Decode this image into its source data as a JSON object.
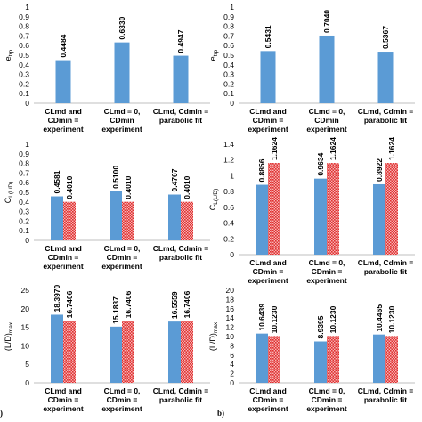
{
  "figure": {
    "panel_labels": [
      "b)"
    ],
    "left_edge_mark": ")"
  },
  "colors": {
    "series_blue": "#5b9bd5",
    "series_red": "#e63c3c",
    "axis": "#bfbfbf",
    "text": "#000000"
  },
  "chart_data": [
    {
      "type": "bar",
      "ylabel": "e_trp",
      "ylim": [
        0,
        1
      ],
      "yticks": [
        "0",
        "0.1",
        "0.2",
        "0.3",
        "0.4",
        "0.5",
        "0.6",
        "0.7",
        "0.8",
        "0.9",
        "1"
      ],
      "categories": [
        [
          "CLmd and",
          "CDmin =",
          "experiment"
        ],
        [
          "CLmd = 0,",
          "CDmin",
          "experiment"
        ],
        [
          "CLmd, Cdmin =",
          "parabolic fit"
        ]
      ],
      "series": [
        {
          "color": "#5b9bd5",
          "values": [
            0.4484,
            0.633,
            0.4947
          ]
        }
      ],
      "data_labels": [
        [
          "0.4484",
          "0.6330",
          "0.4947"
        ]
      ]
    },
    {
      "type": "bar",
      "ylabel": "e_trp",
      "ylim": [
        0,
        1
      ],
      "yticks": [
        "0",
        "0.1",
        "0.2",
        "0.3",
        "0.4",
        "0.5",
        "0.6",
        "0.7",
        "0.8",
        "0.9",
        "1"
      ],
      "categories": [
        [
          "CLmd and",
          "CDmin =",
          "experiment"
        ],
        [
          "CLmd = 0,",
          "CDmin",
          "experiment"
        ],
        [
          "CLmd, Cdmin =",
          "parabolic fit"
        ]
      ],
      "series": [
        {
          "color": "#5b9bd5",
          "values": [
            0.5431,
            0.704,
            0.5367
          ]
        }
      ],
      "data_labels": [
        [
          "0.5431",
          "0.7040",
          "0.5367"
        ]
      ]
    },
    {
      "type": "bar",
      "ylabel": "C_L(L/D)_max",
      "ylim": [
        0,
        1
      ],
      "yticks": [
        "0",
        "0.1",
        "0.2",
        "0.3",
        "0.4",
        "0.5",
        "0.6",
        "0.7",
        "0.8",
        "0.9",
        "1"
      ],
      "categories": [
        [
          "CLmd and",
          "CDmin =",
          "experiment"
        ],
        [
          "CLmd = 0,",
          "CDmin =",
          "experiment"
        ],
        [
          "CLmd, Cdmin =",
          "parabolic fit"
        ]
      ],
      "series": [
        {
          "color": "#5b9bd5",
          "values": [
            0.4581,
            0.51,
            0.4767
          ]
        },
        {
          "color": "#e63c3c",
          "values": [
            0.401,
            0.401,
            0.401
          ]
        }
      ],
      "data_labels": [
        [
          "0.4581",
          "0.5100",
          "0.4767"
        ],
        [
          "0.4010",
          "0.4010",
          "0.4010"
        ]
      ]
    },
    {
      "type": "bar",
      "ylabel": "C_L(L/D)_max",
      "ylim": [
        0,
        1.4
      ],
      "yticks": [
        "0",
        "0.2",
        "0.4",
        "0.6",
        "0.8",
        "1",
        "1.2",
        "1.4"
      ],
      "categories": [
        [
          "CLmd and",
          "CDmin =",
          "experiment"
        ],
        [
          "CLmd = 0,",
          "CDmin =",
          "experiment"
        ],
        [
          "CLmd, Cdmin =",
          "parabolic fit"
        ]
      ],
      "series": [
        {
          "color": "#5b9bd5",
          "values": [
            0.8856,
            0.9634,
            0.8922
          ]
        },
        {
          "color": "#e63c3c",
          "values": [
            1.1624,
            1.1624,
            1.1624
          ]
        }
      ],
      "data_labels": [
        [
          "0.8856",
          "0.9634",
          "0.8922"
        ],
        [
          "1.1624",
          "1.1624",
          "1.1624"
        ]
      ]
    },
    {
      "type": "bar",
      "ylabel": "(L/D)_max",
      "ylim": [
        0,
        25
      ],
      "yticks": [
        "0",
        "5",
        "10",
        "15",
        "20",
        "25"
      ],
      "categories": [
        [
          "CLmd and",
          "CDmin =",
          "experiment"
        ],
        [
          "CLmd = 0,",
          "CDmin =",
          "experiment"
        ],
        [
          "CLmd, Cdmin =",
          "parabolic fit"
        ]
      ],
      "series": [
        {
          "color": "#5b9bd5",
          "values": [
            18.397,
            15.1837,
            16.5559
          ]
        },
        {
          "color": "#e63c3c",
          "values": [
            16.7406,
            16.7406,
            16.7406
          ]
        }
      ],
      "data_labels": [
        [
          "18.3970",
          "15.1837",
          "16.5559"
        ],
        [
          "16.7406",
          "16.7406",
          "16.7406"
        ]
      ]
    },
    {
      "type": "bar",
      "ylabel": "(L/D)_max",
      "ylim": [
        0,
        20
      ],
      "yticks": [
        "0",
        "2",
        "4",
        "6",
        "8",
        "10",
        "12",
        "14",
        "16",
        "18",
        "20"
      ],
      "categories": [
        [
          "CLmd and",
          "CDmin =",
          "experiment"
        ],
        [
          "CLmd = 0,",
          "CDmin =",
          "experiment"
        ],
        [
          "CLmd, Cdmin =",
          "parabolic fit"
        ]
      ],
      "series": [
        {
          "color": "#5b9bd5",
          "values": [
            10.6439,
            8.9395,
            10.4465
          ]
        },
        {
          "color": "#e63c3c",
          "values": [
            10.123,
            10.123,
            10.123
          ]
        }
      ],
      "data_labels": [
        [
          "10.6439",
          "8.9395",
          "10.4465"
        ],
        [
          "10.1230",
          "10.1230",
          "10.1230"
        ]
      ]
    }
  ]
}
